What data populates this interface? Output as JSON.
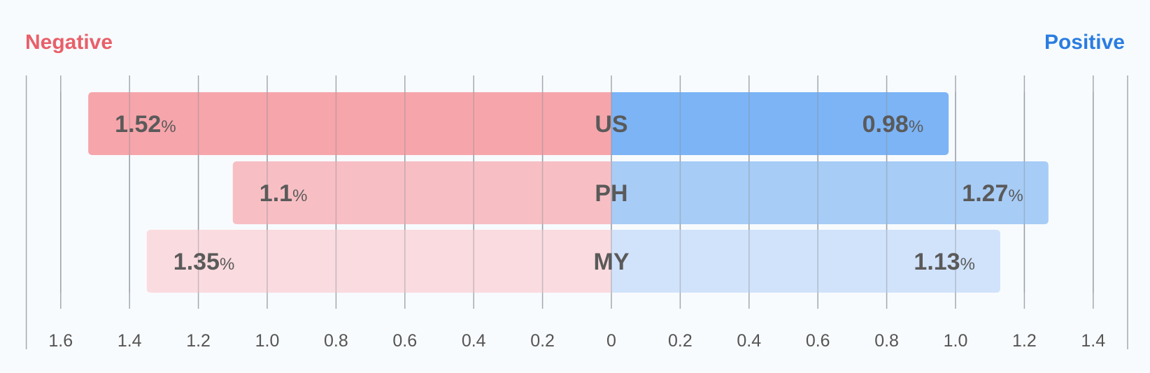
{
  "chart_data": {
    "type": "bar",
    "orientation": "horizontal-diverging",
    "categories": [
      "US",
      "PH",
      "MY"
    ],
    "series": [
      {
        "name": "Negative",
        "values": [
          1.52,
          1.1,
          1.35
        ],
        "side": "left",
        "colors": [
          "#f5a0a6",
          "#f7bcc1",
          "#fad9dd"
        ]
      },
      {
        "name": "Positive",
        "values": [
          0.98,
          1.27,
          1.13
        ],
        "side": "right",
        "colors": [
          "#75b0f5",
          "#a2c9f6",
          "#cfe1fb"
        ]
      }
    ],
    "value_labels": {
      "Negative": [
        "1.52",
        "1.1",
        "1.35"
      ],
      "Positive": [
        "0.98",
        "1.27",
        "1.13"
      ]
    },
    "value_unit": "%",
    "legend": {
      "placement": "top",
      "items": [
        {
          "label": "Negative",
          "color": "#e8606a"
        },
        {
          "label": "Positive",
          "color": "#2a7de1"
        }
      ]
    },
    "x_ticks": {
      "left": [
        "1.6",
        "1.4",
        "1.2",
        "1.0",
        "0.8",
        "0.6",
        "0.4",
        "0.2",
        "0"
      ],
      "right": [
        "0.2",
        "0.4",
        "0.6",
        "0.8",
        "1.0",
        "1.2",
        "1.4"
      ]
    },
    "xlim_left": [
      0,
      1.7
    ],
    "xlim_right": [
      0,
      1.5
    ],
    "grid": true,
    "title": "",
    "xlabel": "",
    "ylabel": ""
  }
}
